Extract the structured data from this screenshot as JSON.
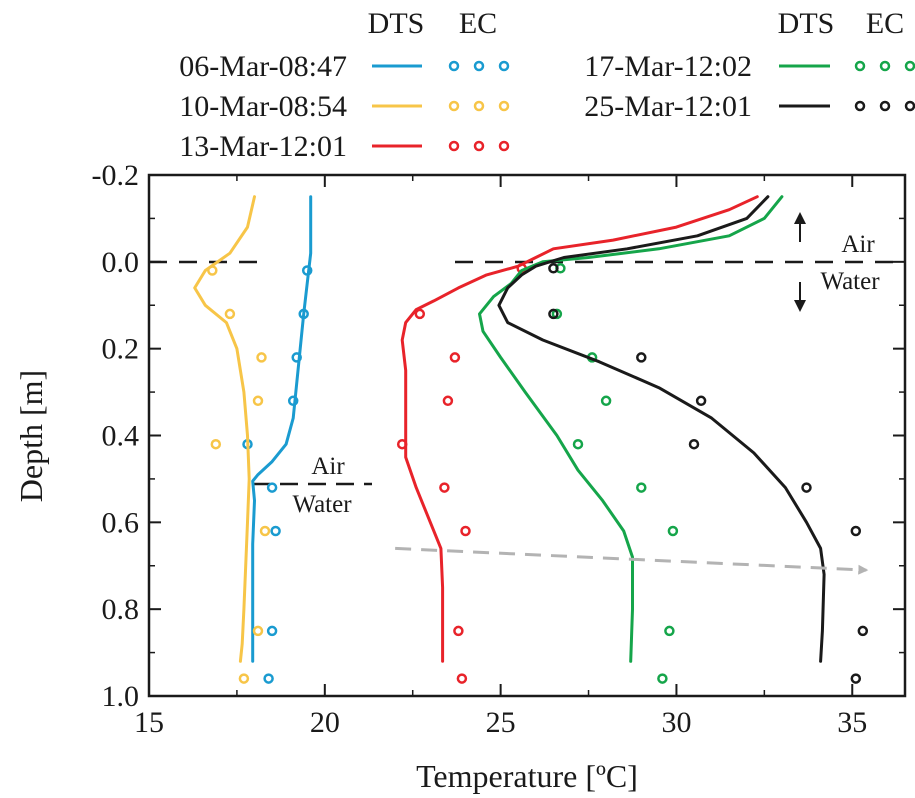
{
  "chart_data": {
    "type": "line",
    "title": "",
    "xlabel": "Temperature [ºC]",
    "ylabel": "Depth [m]",
    "xlim": [
      15,
      36.5
    ],
    "ylim": [
      -0.2,
      1.0
    ],
    "y_inverted": true,
    "xticks": [
      "15",
      "20",
      "25",
      "30",
      "35"
    ],
    "yticks": [
      "-0.2",
      "0.0",
      "0.2",
      "0.4",
      "0.6",
      "0.8",
      "1.0"
    ],
    "grid": false,
    "legend": {
      "placement": "top",
      "header_dts": "DTS",
      "header_ec": "EC"
    },
    "annotations": [
      {
        "kind": "surface-line",
        "label_top": "Air",
        "label_bottom": "Water",
        "depth": 0.0
      },
      {
        "kind": "surface-line",
        "label_top": "Air",
        "label_bottom": "Water",
        "depth": 0.51
      }
    ],
    "trend_arrow": {
      "from": [
        22,
        0.66
      ],
      "to": [
        35.4,
        0.71
      ]
    },
    "series": [
      {
        "name": "06-Mar-08:47",
        "color": "#1a9bd0",
        "dts": [
          [
            19.6,
            -0.15
          ],
          [
            19.6,
            -0.08
          ],
          [
            19.6,
            -0.02
          ],
          [
            19.5,
            0.05
          ],
          [
            19.4,
            0.12
          ],
          [
            19.3,
            0.2
          ],
          [
            19.2,
            0.28
          ],
          [
            19.1,
            0.36
          ],
          [
            18.9,
            0.42
          ],
          [
            18.5,
            0.46
          ],
          [
            18.1,
            0.49
          ],
          [
            17.95,
            0.505
          ],
          [
            18.0,
            0.55
          ],
          [
            17.95,
            0.65
          ],
          [
            17.95,
            0.75
          ],
          [
            17.95,
            0.85
          ],
          [
            17.95,
            0.92
          ]
        ],
        "ec": [
          [
            19.5,
            0.02
          ],
          [
            19.4,
            0.12
          ],
          [
            19.2,
            0.22
          ],
          [
            19.1,
            0.32
          ],
          [
            17.8,
            0.42
          ],
          [
            18.5,
            0.52
          ],
          [
            18.6,
            0.62
          ],
          [
            18.5,
            0.85
          ],
          [
            18.4,
            0.96
          ]
        ]
      },
      {
        "name": "10-Mar-08:54",
        "color": "#f7c548",
        "dts": [
          [
            18.0,
            -0.15
          ],
          [
            17.8,
            -0.08
          ],
          [
            17.3,
            -0.02
          ],
          [
            16.6,
            0.02
          ],
          [
            16.3,
            0.06
          ],
          [
            16.6,
            0.1
          ],
          [
            17.2,
            0.14
          ],
          [
            17.5,
            0.2
          ],
          [
            17.7,
            0.3
          ],
          [
            17.8,
            0.4
          ],
          [
            17.85,
            0.5
          ],
          [
            17.8,
            0.6
          ],
          [
            17.75,
            0.7
          ],
          [
            17.7,
            0.8
          ],
          [
            17.65,
            0.88
          ],
          [
            17.6,
            0.92
          ]
        ],
        "ec": [
          [
            16.8,
            0.02
          ],
          [
            17.3,
            0.12
          ],
          [
            18.2,
            0.22
          ],
          [
            18.1,
            0.32
          ],
          [
            16.9,
            0.42
          ],
          [
            18.3,
            0.62
          ],
          [
            18.1,
            0.85
          ],
          [
            17.7,
            0.96
          ]
        ]
      },
      {
        "name": "13-Mar-12:01",
        "color": "#e8232a",
        "dts": [
          [
            32.3,
            -0.15
          ],
          [
            31.5,
            -0.12
          ],
          [
            30.0,
            -0.08
          ],
          [
            28.2,
            -0.05
          ],
          [
            26.5,
            -0.03
          ],
          [
            26.0,
            -0.01
          ],
          [
            25.5,
            0.01
          ],
          [
            24.6,
            0.03
          ],
          [
            23.8,
            0.06
          ],
          [
            23.1,
            0.09
          ],
          [
            22.6,
            0.11
          ],
          [
            22.3,
            0.14
          ],
          [
            22.2,
            0.18
          ],
          [
            22.3,
            0.25
          ],
          [
            22.3,
            0.35
          ],
          [
            22.3,
            0.45
          ],
          [
            22.6,
            0.52
          ],
          [
            23.0,
            0.6
          ],
          [
            23.3,
            0.66
          ],
          [
            23.35,
            0.75
          ],
          [
            23.35,
            0.85
          ],
          [
            23.35,
            0.92
          ]
        ],
        "ec": [
          [
            25.6,
            0.015
          ],
          [
            22.7,
            0.12
          ],
          [
            23.7,
            0.22
          ],
          [
            23.5,
            0.32
          ],
          [
            22.2,
            0.42
          ],
          [
            23.4,
            0.52
          ],
          [
            24.0,
            0.62
          ],
          [
            23.8,
            0.85
          ],
          [
            23.9,
            0.96
          ]
        ]
      },
      {
        "name": "17-Mar-12:02",
        "color": "#15a54a",
        "dts": [
          [
            33.0,
            -0.15
          ],
          [
            32.5,
            -0.1
          ],
          [
            31.5,
            -0.06
          ],
          [
            29.5,
            -0.03
          ],
          [
            27.5,
            -0.01
          ],
          [
            26.2,
            0.0
          ],
          [
            25.6,
            0.02
          ],
          [
            25.3,
            0.05
          ],
          [
            24.8,
            0.08
          ],
          [
            24.4,
            0.12
          ],
          [
            24.5,
            0.16
          ],
          [
            25.0,
            0.22
          ],
          [
            25.7,
            0.3
          ],
          [
            26.6,
            0.4
          ],
          [
            27.2,
            0.48
          ],
          [
            27.9,
            0.55
          ],
          [
            28.5,
            0.62
          ],
          [
            28.75,
            0.68
          ],
          [
            28.75,
            0.8
          ],
          [
            28.7,
            0.92
          ]
        ],
        "ec": [
          [
            26.7,
            0.015
          ],
          [
            26.6,
            0.12
          ],
          [
            27.6,
            0.22
          ],
          [
            28.0,
            0.32
          ],
          [
            27.2,
            0.42
          ],
          [
            29.0,
            0.52
          ],
          [
            29.9,
            0.62
          ],
          [
            29.8,
            0.85
          ],
          [
            29.6,
            0.96
          ]
        ]
      },
      {
        "name": "25-Mar-12:01",
        "color": "#1a1a1a",
        "dts": [
          [
            32.6,
            -0.15
          ],
          [
            32.0,
            -0.1
          ],
          [
            30.6,
            -0.06
          ],
          [
            28.6,
            -0.03
          ],
          [
            26.8,
            -0.01
          ],
          [
            26.0,
            0.01
          ],
          [
            25.6,
            0.03
          ],
          [
            25.2,
            0.06
          ],
          [
            24.95,
            0.1
          ],
          [
            25.2,
            0.14
          ],
          [
            26.2,
            0.18
          ],
          [
            27.8,
            0.23
          ],
          [
            29.5,
            0.29
          ],
          [
            31.0,
            0.36
          ],
          [
            32.2,
            0.44
          ],
          [
            33.1,
            0.52
          ],
          [
            33.7,
            0.6
          ],
          [
            34.1,
            0.66
          ],
          [
            34.2,
            0.72
          ],
          [
            34.15,
            0.85
          ],
          [
            34.1,
            0.92
          ]
        ],
        "ec": [
          [
            26.5,
            0.015
          ],
          [
            26.5,
            0.12
          ],
          [
            29.0,
            0.22
          ],
          [
            30.7,
            0.32
          ],
          [
            30.5,
            0.42
          ],
          [
            33.7,
            0.52
          ],
          [
            35.1,
            0.62
          ],
          [
            35.3,
            0.85
          ],
          [
            35.1,
            0.96
          ]
        ]
      }
    ]
  }
}
